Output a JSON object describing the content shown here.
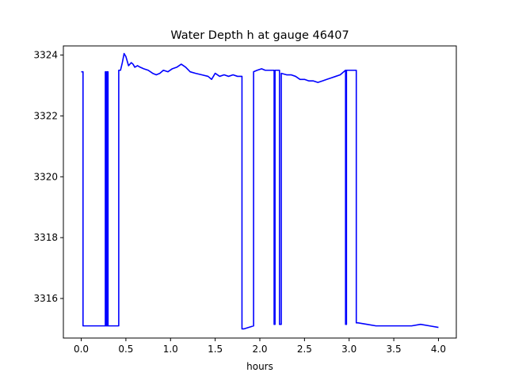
{
  "chart_data": {
    "type": "line",
    "title": "Water Depth h at gauge 46407",
    "xlabel": "hours",
    "ylabel": "",
    "xlim": [
      -0.2,
      4.2
    ],
    "ylim": [
      3314.7,
      3324.3
    ],
    "xticks": [
      0.0,
      0.5,
      1.0,
      1.5,
      2.0,
      2.5,
      3.0,
      3.5,
      4.0
    ],
    "xtick_labels": [
      "0.0",
      "0.5",
      "1.0",
      "1.5",
      "2.0",
      "2.5",
      "3.0",
      "3.5",
      "4.0"
    ],
    "yticks": [
      3316,
      3318,
      3320,
      3322,
      3324
    ],
    "ytick_labels": [
      "3316",
      "3318",
      "3320",
      "3322",
      "3324"
    ],
    "grid": false,
    "series": [
      {
        "color": "#0000ff",
        "x": [
          0.0,
          0.02,
          0.02,
          0.27,
          0.27,
          0.28,
          0.28,
          0.29,
          0.29,
          0.3,
          0.3,
          0.42,
          0.42,
          0.44,
          0.46,
          0.48,
          0.5,
          0.53,
          0.56,
          0.58,
          0.6,
          0.63,
          0.66,
          0.7,
          0.75,
          0.8,
          0.84,
          0.88,
          0.92,
          0.97,
          1.02,
          1.07,
          1.12,
          1.17,
          1.22,
          1.28,
          1.35,
          1.42,
          1.46,
          1.5,
          1.55,
          1.6,
          1.65,
          1.7,
          1.75,
          1.8,
          1.8,
          1.82,
          1.93,
          1.93,
          1.97,
          2.02,
          2.06,
          2.1,
          2.15,
          2.16,
          2.16,
          2.17,
          2.17,
          2.2,
          2.22,
          2.22,
          2.24,
          2.24,
          2.3,
          2.35,
          2.4,
          2.45,
          2.5,
          2.55,
          2.6,
          2.65,
          2.7,
          2.75,
          2.8,
          2.85,
          2.9,
          2.96,
          2.96,
          2.97,
          2.97,
          2.98,
          3.02,
          3.08,
          3.08,
          3.1,
          3.2,
          3.3,
          3.4,
          3.5,
          3.6,
          3.7,
          3.8,
          3.9,
          4.0
        ],
        "y": [
          3323.45,
          3323.45,
          3315.1,
          3315.1,
          3323.45,
          3323.45,
          3315.1,
          3315.1,
          3323.45,
          3323.45,
          3315.1,
          3315.1,
          3323.5,
          3323.5,
          3323.75,
          3324.05,
          3323.95,
          3323.65,
          3323.75,
          3323.7,
          3323.6,
          3323.65,
          3323.6,
          3323.55,
          3323.5,
          3323.4,
          3323.35,
          3323.4,
          3323.5,
          3323.45,
          3323.55,
          3323.6,
          3323.7,
          3323.6,
          3323.45,
          3323.4,
          3323.35,
          3323.3,
          3323.2,
          3323.4,
          3323.3,
          3323.35,
          3323.3,
          3323.35,
          3323.3,
          3323.3,
          3315.0,
          3315.0,
          3315.1,
          3323.45,
          3323.5,
          3323.55,
          3323.5,
          3323.5,
          3323.5,
          3323.5,
          3315.15,
          3315.15,
          3323.5,
          3323.5,
          3323.5,
          3315.15,
          3315.15,
          3323.4,
          3323.35,
          3323.35,
          3323.3,
          3323.2,
          3323.2,
          3323.15,
          3323.15,
          3323.1,
          3323.15,
          3323.2,
          3323.25,
          3323.3,
          3323.35,
          3323.5,
          3315.15,
          3315.15,
          3323.5,
          3323.5,
          3323.5,
          3323.5,
          3315.2,
          3315.2,
          3315.15,
          3315.1,
          3315.1,
          3315.1,
          3315.1,
          3315.1,
          3315.15,
          3315.1,
          3315.05
        ]
      }
    ]
  }
}
